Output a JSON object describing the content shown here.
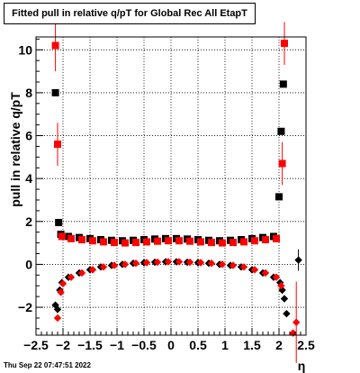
{
  "chart_data": {
    "type": "scatter",
    "title": "Fitted pull in relative q/pT for Global Rec All EtapT",
    "xlabel": "η",
    "ylabel": "pull in relative q/pT",
    "xlim": [
      -2.5,
      2.5
    ],
    "ylim": [
      -3.3,
      10.6
    ],
    "x_ticks": [
      -2.5,
      -2,
      -1.5,
      -1,
      -0.5,
      0,
      0.5,
      1,
      1.5,
      2,
      2.5
    ],
    "x_tick_labels": [
      "−2.5",
      "−2",
      "−1.5",
      "−1",
      "−0.5",
      "0",
      "0.5",
      "1",
      "1.5",
      "2",
      "2.5"
    ],
    "y_ticks": [
      -2,
      0,
      2,
      4,
      6,
      8,
      10
    ],
    "y_tick_labels": [
      "−2",
      "0",
      "2",
      "4",
      "6",
      "8",
      "10"
    ],
    "grid": true,
    "series": [
      {
        "marker": "square",
        "color": "#000000",
        "points": [
          {
            "x": -2.14,
            "y": 8.0
          },
          {
            "x": -2.08,
            "y": 1.95
          },
          {
            "x": -2.04,
            "y": 1.4
          },
          {
            "x": -1.9,
            "y": 1.3
          },
          {
            "x": -1.7,
            "y": 1.25
          },
          {
            "x": -1.5,
            "y": 1.2
          },
          {
            "x": -1.3,
            "y": 1.15
          },
          {
            "x": -1.1,
            "y": 1.12
          },
          {
            "x": -0.9,
            "y": 1.1
          },
          {
            "x": -0.7,
            "y": 1.12
          },
          {
            "x": -0.5,
            "y": 1.15
          },
          {
            "x": -0.3,
            "y": 1.18
          },
          {
            "x": -0.1,
            "y": 1.2
          },
          {
            "x": 0.1,
            "y": 1.2
          },
          {
            "x": 0.3,
            "y": 1.18
          },
          {
            "x": 0.5,
            "y": 1.15
          },
          {
            "x": 0.7,
            "y": 1.12
          },
          {
            "x": 0.9,
            "y": 1.1
          },
          {
            "x": 1.1,
            "y": 1.12
          },
          {
            "x": 1.3,
            "y": 1.15
          },
          {
            "x": 1.5,
            "y": 1.2
          },
          {
            "x": 1.7,
            "y": 1.25
          },
          {
            "x": 1.9,
            "y": 1.3
          },
          {
            "x": 2.0,
            "y": 3.15
          },
          {
            "x": 2.04,
            "y": 6.2
          },
          {
            "x": 2.08,
            "y": 8.4
          }
        ]
      },
      {
        "marker": "square",
        "color": "#ff0000",
        "points": [
          {
            "x": -2.14,
            "y": 10.2,
            "err": 1.2
          },
          {
            "x": -2.1,
            "y": 5.6,
            "err": 1.0
          },
          {
            "x": -2.02,
            "y": 1.3
          },
          {
            "x": -1.85,
            "y": 1.2
          },
          {
            "x": -1.65,
            "y": 1.15
          },
          {
            "x": -1.45,
            "y": 1.1
          },
          {
            "x": -1.25,
            "y": 1.05
          },
          {
            "x": -1.05,
            "y": 1.02
          },
          {
            "x": -0.85,
            "y": 1.0
          },
          {
            "x": -0.65,
            "y": 1.02
          },
          {
            "x": -0.45,
            "y": 1.05
          },
          {
            "x": -0.25,
            "y": 1.08
          },
          {
            "x": -0.05,
            "y": 1.1
          },
          {
            "x": 0.15,
            "y": 1.1
          },
          {
            "x": 0.35,
            "y": 1.08
          },
          {
            "x": 0.55,
            "y": 1.05
          },
          {
            "x": 0.75,
            "y": 1.02
          },
          {
            "x": 0.95,
            "y": 1.0
          },
          {
            "x": 1.15,
            "y": 1.02
          },
          {
            "x": 1.35,
            "y": 1.05
          },
          {
            "x": 1.55,
            "y": 1.1
          },
          {
            "x": 1.75,
            "y": 1.15
          },
          {
            "x": 1.95,
            "y": 1.2
          },
          {
            "x": 2.06,
            "y": 4.7,
            "err": 1.0
          },
          {
            "x": 2.1,
            "y": 10.3,
            "err": 1.0
          }
        ]
      },
      {
        "marker": "diamond",
        "color": "#000000",
        "points": [
          {
            "x": -2.14,
            "y": -1.9
          },
          {
            "x": -2.1,
            "y": -2.1
          },
          {
            "x": -2.06,
            "y": -1.2
          },
          {
            "x": -2.02,
            "y": -0.85
          },
          {
            "x": -1.9,
            "y": -0.6
          },
          {
            "x": -1.7,
            "y": -0.4
          },
          {
            "x": -1.5,
            "y": -0.25
          },
          {
            "x": -1.3,
            "y": -0.12
          },
          {
            "x": -1.1,
            "y": -0.05
          },
          {
            "x": -0.9,
            "y": 0.0
          },
          {
            "x": -0.7,
            "y": 0.05
          },
          {
            "x": -0.5,
            "y": 0.08
          },
          {
            "x": -0.3,
            "y": 0.1
          },
          {
            "x": -0.1,
            "y": 0.12
          },
          {
            "x": 0.1,
            "y": 0.12
          },
          {
            "x": 0.3,
            "y": 0.1
          },
          {
            "x": 0.5,
            "y": 0.08
          },
          {
            "x": 0.7,
            "y": 0.05
          },
          {
            "x": 0.9,
            "y": 0.0
          },
          {
            "x": 1.1,
            "y": -0.05
          },
          {
            "x": 1.3,
            "y": -0.12
          },
          {
            "x": 1.5,
            "y": -0.25
          },
          {
            "x": 1.7,
            "y": -0.4
          },
          {
            "x": 1.9,
            "y": -0.6
          },
          {
            "x": 2.02,
            "y": -0.85
          },
          {
            "x": 2.06,
            "y": -1.2
          },
          {
            "x": 2.1,
            "y": -1.6
          },
          {
            "x": 2.14,
            "y": -2.3
          },
          {
            "x": 2.36,
            "y": 0.2,
            "err": 0.5
          }
        ]
      },
      {
        "marker": "diamond",
        "color": "#ff0000",
        "points": [
          {
            "x": -2.1,
            "y": -2.5
          },
          {
            "x": -2.04,
            "y": -1.3
          },
          {
            "x": -2.0,
            "y": -0.9
          },
          {
            "x": -1.85,
            "y": -0.6
          },
          {
            "x": -1.65,
            "y": -0.4
          },
          {
            "x": -1.45,
            "y": -0.25
          },
          {
            "x": -1.25,
            "y": -0.12
          },
          {
            "x": -1.05,
            "y": -0.05
          },
          {
            "x": -0.85,
            "y": 0.0
          },
          {
            "x": -0.65,
            "y": 0.05
          },
          {
            "x": -0.45,
            "y": 0.08
          },
          {
            "x": -0.25,
            "y": 0.1
          },
          {
            "x": -0.05,
            "y": 0.12
          },
          {
            "x": 0.15,
            "y": 0.12
          },
          {
            "x": 0.35,
            "y": 0.1
          },
          {
            "x": 0.55,
            "y": 0.08
          },
          {
            "x": 0.75,
            "y": 0.05
          },
          {
            "x": 0.95,
            "y": 0.0
          },
          {
            "x": 1.15,
            "y": -0.05
          },
          {
            "x": 1.35,
            "y": -0.12
          },
          {
            "x": 1.55,
            "y": -0.25
          },
          {
            "x": 1.75,
            "y": -0.4
          },
          {
            "x": 1.95,
            "y": -0.6
          },
          {
            "x": 2.04,
            "y": -1.0
          },
          {
            "x": 2.26,
            "y": -3.2
          },
          {
            "x": 2.32,
            "y": -2.7,
            "err": 1.9
          }
        ]
      }
    ]
  },
  "footer": {
    "timestamp": "Thu Sep 22 07:47:51 2022"
  }
}
